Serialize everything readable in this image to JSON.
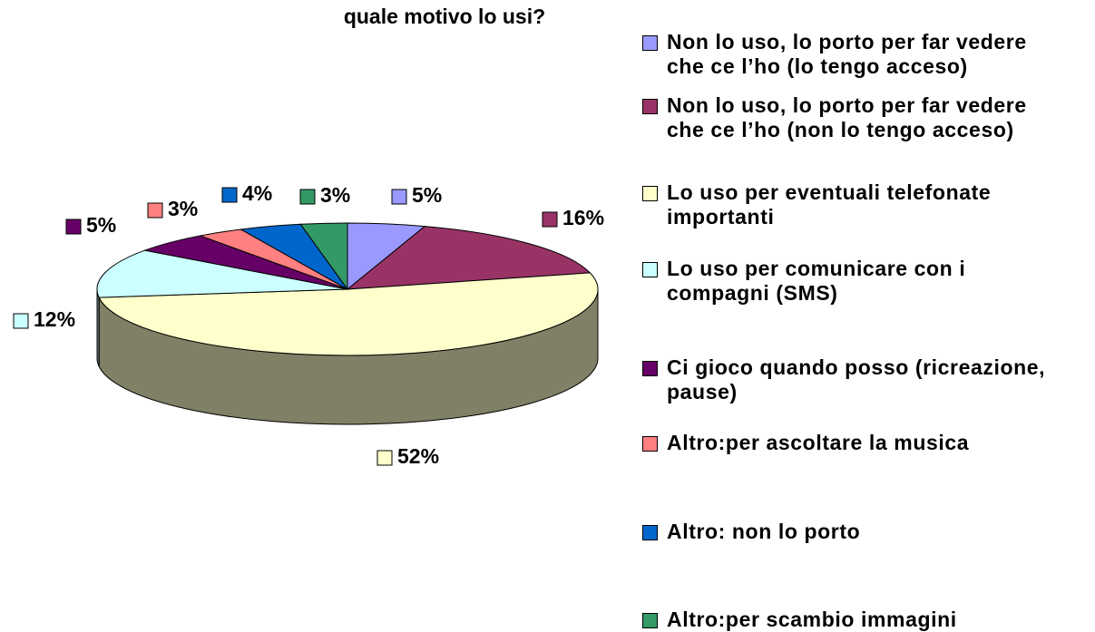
{
  "chart_data": {
    "type": "pie",
    "title": "quale motivo lo usi?",
    "categories": [
      "Non lo uso, lo porto per far vedere che ce l’ho (lo tengo acceso)",
      "Non lo uso, lo porto per far vedere che ce l’ho (non lo tengo acceso)",
      "Lo uso per eventuali telefonate importanti",
      "Lo uso per comunicare con i compagni (SMS)",
      "Ci gioco quando posso (ricreazione, pause)",
      "Altro:per ascoltare la musica",
      "Altro: non lo porto",
      "Altro:per scambio immagini"
    ],
    "values": [
      5,
      16,
      52,
      12,
      5,
      3,
      4,
      3
    ],
    "value_labels": [
      "5%",
      "16%",
      "52%",
      "12%",
      "5%",
      "3%",
      "4%",
      "3%"
    ],
    "colors": [
      "#9999ff",
      "#993366",
      "#ffffcc",
      "#ccffff",
      "#660066",
      "#ff8080",
      "#0066cc",
      "#339966"
    ],
    "legend": "right"
  }
}
